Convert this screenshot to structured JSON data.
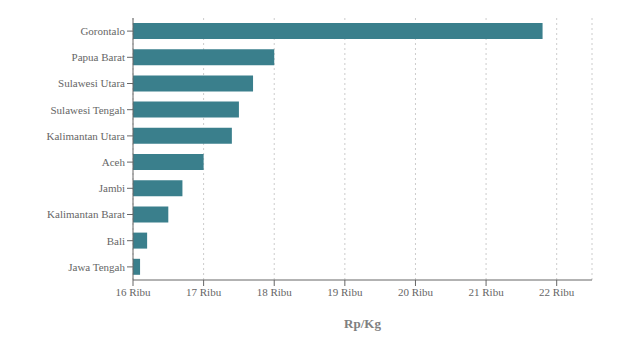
{
  "chart_data": {
    "type": "bar",
    "orientation": "horizontal",
    "categories": [
      "Gorontalo",
      "Papua Barat",
      "Sulawesi Utara",
      "Sulawesi Tengah",
      "Kalimantan Utara",
      "Aceh",
      "Jambi",
      "Kalimantan Barat",
      "Bali",
      "Jawa Tengah"
    ],
    "values": [
      21800,
      18000,
      17700,
      17500,
      17400,
      17000,
      16700,
      16500,
      16200,
      16100
    ],
    "color": "#3a7f8c",
    "xlabel": "Rp/Kg",
    "xlim": [
      16000,
      22500
    ],
    "xticks": [
      {
        "value": 16000,
        "label": "16 Ribu"
      },
      {
        "value": 17000,
        "label": "17 Ribu"
      },
      {
        "value": 18000,
        "label": "18 Ribu"
      },
      {
        "value": 19000,
        "label": "19 Ribu"
      },
      {
        "value": 20000,
        "label": "20 Ribu"
      },
      {
        "value": 21000,
        "label": "21 Ribu"
      },
      {
        "value": 22000,
        "label": "22 Ribu"
      }
    ],
    "grid": true
  }
}
